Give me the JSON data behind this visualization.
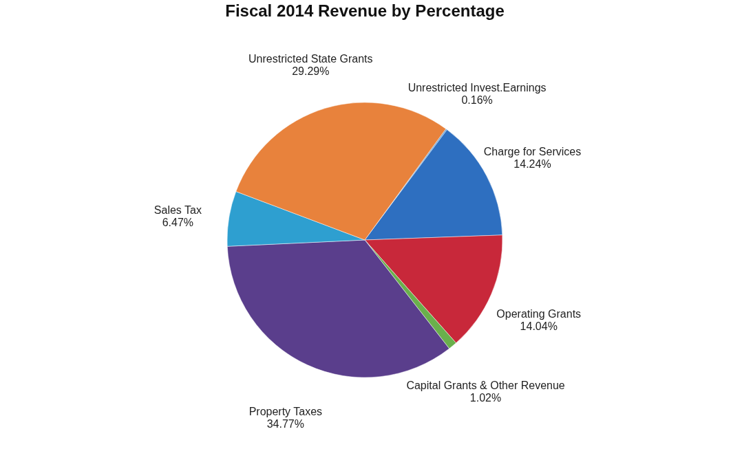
{
  "chart_data": {
    "type": "pie",
    "title": "Fiscal 2014 Revenue by Percentage",
    "categories": [
      "Unrestricted Invest.Earnings",
      "Charge for Services",
      "Operating Grants",
      "Capital Grants & Other Revenue",
      "Property Taxes",
      "Sales Tax",
      "Unrestricted State Grants"
    ],
    "values": [
      0.16,
      14.24,
      14.04,
      1.02,
      34.77,
      6.47,
      29.29
    ],
    "value_labels": [
      "0.16%",
      "14.24%",
      "14.04%",
      "1.02%",
      "34.77%",
      "6.47%",
      "29.29%"
    ],
    "colors": [
      "#5b9bd5",
      "#2e6fc0",
      "#c8283a",
      "#6ab04c",
      "#5a3e8c",
      "#2e9fd0",
      "#e8823c"
    ]
  }
}
